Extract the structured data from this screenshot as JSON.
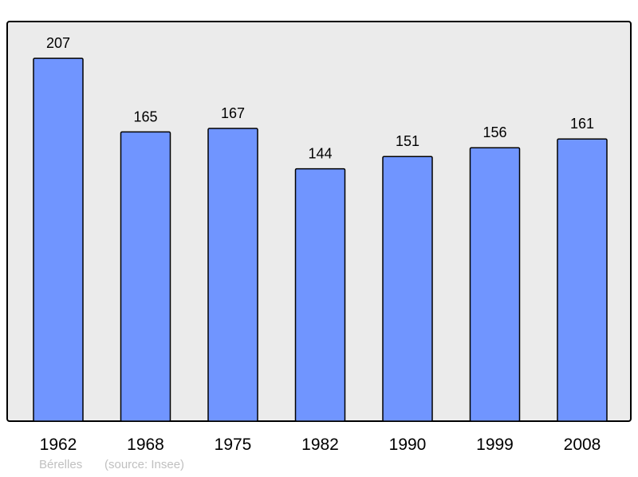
{
  "chart_data": {
    "type": "bar",
    "categories": [
      "1962",
      "1968",
      "1975",
      "1982",
      "1990",
      "1999",
      "2008"
    ],
    "values": [
      207,
      165,
      167,
      144,
      151,
      156,
      161
    ],
    "title": "",
    "xlabel": "",
    "ylabel": "",
    "ylim": [
      0,
      228
    ],
    "grid": false,
    "data_labels": true,
    "colors": {
      "bar": "#7095ff",
      "plot_background": "#ebebeb",
      "border": "#000000"
    }
  },
  "footer": {
    "place": "Bérelles",
    "source": "(source: Insee)"
  }
}
